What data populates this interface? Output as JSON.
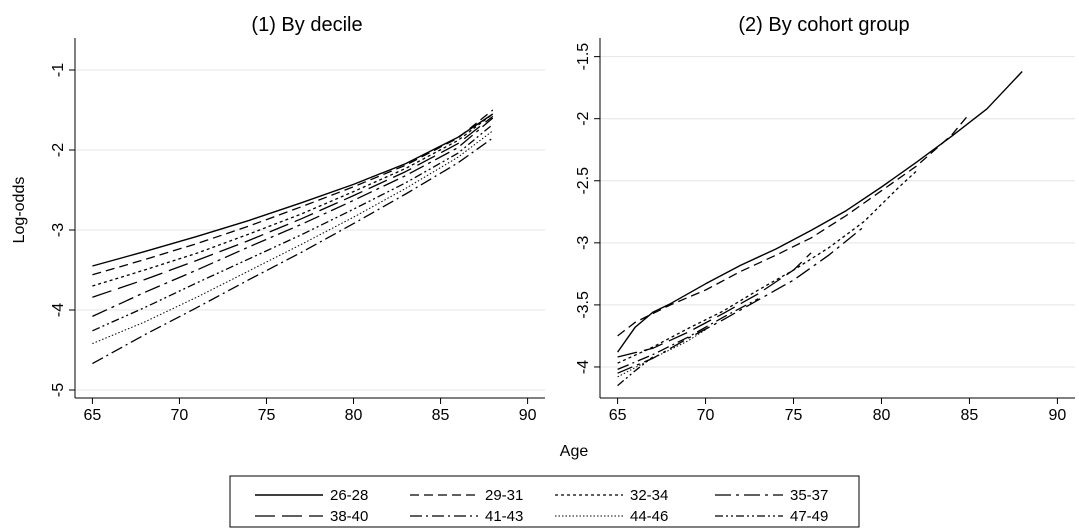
{
  "figure": {
    "shared_xlabel": "Age",
    "shared_ylabel": "Log-odds"
  },
  "styles": {
    "26-28": {
      "dash": "",
      "width": 1.4
    },
    "29-31": {
      "dash": "9 5",
      "width": 1.3
    },
    "32-34": {
      "dash": "3 3",
      "width": 1.3
    },
    "35-37": {
      "dash": "16 5 3 5",
      "width": 1.3
    },
    "38-40": {
      "dash": "20 7",
      "width": 1.3
    },
    "41-43": {
      "dash": "12 4 2 4",
      "width": 1.3
    },
    "44-46": {
      "dash": "1.5 2",
      "width": 1.0
    },
    "47-49": {
      "dash": "8 3 2 3 2 3",
      "width": 1.3
    }
  },
  "legend": {
    "items": [
      "26-28",
      "29-31",
      "32-34",
      "35-37",
      "38-40",
      "41-43",
      "44-46",
      "47-49"
    ]
  },
  "chart_data": [
    {
      "type": "line",
      "title": "(1) By decile",
      "ylabel": "Log-odds",
      "xlabel": "",
      "xlim": [
        64,
        91
      ],
      "ylim": [
        -5.1,
        -0.6
      ],
      "xticks": [
        65,
        70,
        75,
        80,
        85,
        90
      ],
      "yticks": [
        -5,
        -4,
        -3,
        -2,
        -1
      ],
      "grid": "horizontal",
      "x": [
        65,
        68,
        71,
        74,
        77,
        80,
        83,
        86,
        88
      ],
      "series": [
        {
          "name": "26-28",
          "values": [
            -3.45,
            -3.27,
            -3.08,
            -2.88,
            -2.66,
            -2.43,
            -2.17,
            -1.84,
            -1.55
          ]
        },
        {
          "name": "29-31",
          "values": [
            -3.56,
            -3.37,
            -3.17,
            -2.95,
            -2.71,
            -2.46,
            -2.19,
            -1.85,
            -1.5
          ]
        },
        {
          "name": "32-34",
          "values": [
            -3.7,
            -3.5,
            -3.29,
            -3.05,
            -2.8,
            -2.52,
            -2.23,
            -1.88,
            -1.55
          ]
        },
        {
          "name": "35-37",
          "values": [
            -4.08,
            -3.78,
            -3.5,
            -3.21,
            -2.93,
            -2.63,
            -2.32,
            -1.97,
            -1.6
          ]
        },
        {
          "name": "38-40",
          "values": [
            -3.84,
            -3.62,
            -3.38,
            -3.13,
            -2.86,
            -2.57,
            -2.27,
            -1.92,
            -1.58
          ]
        },
        {
          "name": "41-43",
          "values": [
            -4.67,
            -4.31,
            -3.97,
            -3.62,
            -3.28,
            -2.92,
            -2.55,
            -2.16,
            -1.85
          ]
        },
        {
          "name": "44-46",
          "values": [
            -4.42,
            -4.15,
            -3.84,
            -3.51,
            -3.18,
            -2.84,
            -2.48,
            -2.09,
            -1.76
          ]
        },
        {
          "name": "47-49",
          "values": [
            -4.26,
            -3.97,
            -3.66,
            -3.36,
            -3.06,
            -2.74,
            -2.41,
            -2.04,
            -1.68
          ]
        }
      ]
    },
    {
      "type": "line",
      "title": "(2) By cohort group",
      "ylabel": "",
      "xlabel": "",
      "xlim": [
        64,
        91
      ],
      "ylim": [
        -4.25,
        -1.35
      ],
      "xticks": [
        65,
        70,
        75,
        80,
        85,
        90
      ],
      "yticks": [
        -4,
        -3.5,
        -3,
        -2.5,
        -2,
        -1.5
      ],
      "grid": "horizontal",
      "series": [
        {
          "name": "26-28",
          "x": [
            65,
            66,
            67,
            68,
            70,
            72,
            74,
            76,
            78,
            80,
            82,
            84,
            86,
            88
          ],
          "values": [
            -3.88,
            -3.68,
            -3.56,
            -3.49,
            -3.33,
            -3.18,
            -3.05,
            -2.9,
            -2.74,
            -2.55,
            -2.35,
            -2.14,
            -1.92,
            -1.62
          ]
        },
        {
          "name": "29-31",
          "x": [
            65,
            66,
            68,
            70,
            72,
            74,
            76,
            78,
            80,
            82,
            84,
            85
          ],
          "values": [
            -3.75,
            -3.64,
            -3.5,
            -3.38,
            -3.23,
            -3.1,
            -2.96,
            -2.78,
            -2.58,
            -2.38,
            -2.13,
            -1.96
          ]
        },
        {
          "name": "32-34",
          "x": [
            65,
            67,
            69,
            71,
            73,
            75,
            77,
            79,
            81,
            82
          ],
          "values": [
            -3.97,
            -3.84,
            -3.69,
            -3.55,
            -3.38,
            -3.22,
            -3.04,
            -2.83,
            -2.55,
            -2.42
          ]
        },
        {
          "name": "35-37",
          "x": [
            65,
            67,
            69,
            71,
            73,
            75,
            77,
            79
          ],
          "values": [
            -4.05,
            -3.93,
            -3.77,
            -3.62,
            -3.46,
            -3.3,
            -3.1,
            -2.87
          ]
        },
        {
          "name": "38-40",
          "x": [
            65,
            67,
            69,
            71,
            73,
            75,
            76
          ],
          "values": [
            -3.92,
            -3.85,
            -3.72,
            -3.57,
            -3.41,
            -3.22,
            -3.08
          ]
        },
        {
          "name": "41-43",
          "x": [
            65,
            67,
            69,
            71,
            73
          ],
          "values": [
            -4.02,
            -3.9,
            -3.76,
            -3.6,
            -3.45
          ]
        },
        {
          "name": "44-46",
          "x": [
            65,
            67,
            69,
            70
          ],
          "values": [
            -4.08,
            -3.93,
            -3.79,
            -3.7
          ]
        },
        {
          "name": "47-49",
          "x": [
            65,
            66,
            67
          ],
          "values": [
            -4.15,
            -4.03,
            -3.92
          ]
        }
      ]
    }
  ]
}
